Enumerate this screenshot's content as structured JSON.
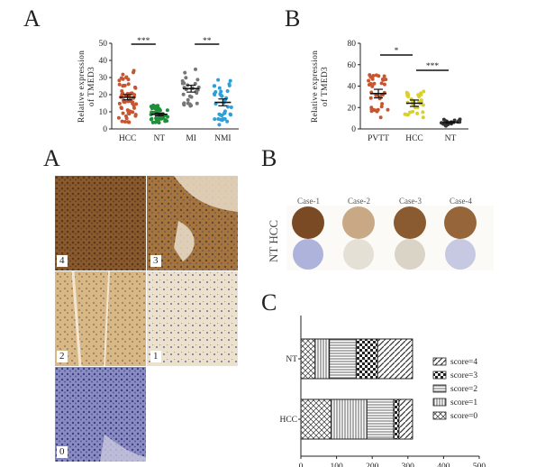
{
  "panels": {
    "top_left_letter": "A",
    "top_right_letter": "B",
    "mid_left_letter": "A",
    "mid_right_letter": "B",
    "bottom_right_letter": "C"
  },
  "ihc_tiles": [
    {
      "label": "4"
    },
    {
      "label": "3"
    },
    {
      "label": "2"
    },
    {
      "label": "1"
    },
    {
      "label": "0"
    }
  ],
  "tma": {
    "side_label": "NT HCC",
    "cases": [
      "Case-1",
      "Case-2",
      "Case-3",
      "Case-4"
    ]
  },
  "colors": {
    "hcc": "#c8552e",
    "nt": "#1f8f3a",
    "mi": "#777777",
    "nmi": "#2f9fd9",
    "pvtt": "#c8552e",
    "hcc_b": "#d9d12a",
    "nt_b": "#333333"
  },
  "chart_data": [
    {
      "type": "scatter",
      "ylabel": "Relative expression of TMED3",
      "ylim": [
        0,
        50
      ],
      "yticks": [
        "0",
        "10",
        "20",
        "30",
        "40",
        "50"
      ],
      "categories": [
        "HCC",
        "NT",
        "MI",
        "NMI"
      ],
      "series": [
        {
          "category": "HCC",
          "mean": 18.5,
          "sem": 1.5
        },
        {
          "category": "NT",
          "mean": 8.5,
          "sem": 0.8
        },
        {
          "category": "MI",
          "mean": 23.5,
          "sem": 2.0
        },
        {
          "category": "NMI",
          "mean": 15.5,
          "sem": 2.0
        }
      ],
      "significance": [
        {
          "from": "HCC",
          "to": "NT",
          "label": "***"
        },
        {
          "from": "MI",
          "to": "NMI",
          "label": "**"
        }
      ]
    },
    {
      "type": "scatter",
      "ylabel": "Relative expression of TMED3",
      "ylim": [
        0,
        80
      ],
      "yticks": [
        "0",
        "20",
        "40",
        "60",
        "80"
      ],
      "categories": [
        "PVTT",
        "HCC",
        "NT"
      ],
      "series": [
        {
          "category": "PVTT",
          "mean": 33,
          "sem": 4
        },
        {
          "category": "HCC",
          "mean": 24,
          "sem": 3
        },
        {
          "category": "NT",
          "mean": 6,
          "sem": 0.8
        }
      ],
      "significance": [
        {
          "from": "PVTT",
          "to": "HCC",
          "label": "*"
        },
        {
          "from": "HCC",
          "to": "NT",
          "label": "***"
        }
      ]
    },
    {
      "type": "bar",
      "orientation": "horizontal",
      "stacked": true,
      "categories": [
        "NT",
        "HCC"
      ],
      "xlim": [
        0,
        500
      ],
      "xticks": [
        "0",
        "100",
        "200",
        "300",
        "400",
        "500"
      ],
      "series": [
        {
          "name": "score=0",
          "values": [
            40,
            85
          ]
        },
        {
          "name": "score=1",
          "values": [
            40,
            100
          ]
        },
        {
          "name": "score=2",
          "values": [
            75,
            75
          ]
        },
        {
          "name": "score=3",
          "values": [
            60,
            15
          ]
        },
        {
          "name": "score=4",
          "values": [
            98,
            38
          ]
        }
      ],
      "legend": [
        "score=4",
        "score=3",
        "score=2",
        "score=1",
        "score=0"
      ],
      "legend_position": "right"
    }
  ]
}
